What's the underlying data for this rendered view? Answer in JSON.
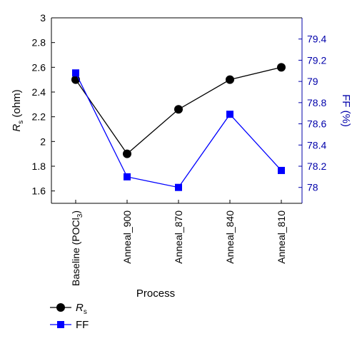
{
  "chart_data": {
    "type": "line",
    "categories": [
      "Baseline (POCl3)",
      "Anneal_900",
      "Anneal_870",
      "Anneal_840",
      "Anneal_810"
    ],
    "category_labels": [
      {
        "main": "Baseline (POCl",
        "sub": "3",
        "tail": ")"
      },
      {
        "main": "Anneal_900",
        "sub": "",
        "tail": ""
      },
      {
        "main": "Anneal_870",
        "sub": "",
        "tail": ""
      },
      {
        "main": "Anneal_840",
        "sub": "",
        "tail": ""
      },
      {
        "main": "Anneal_810",
        "sub": "",
        "tail": ""
      }
    ],
    "xlabel": "Process",
    "left_axis": {
      "label_main": "R",
      "label_sub": "s",
      "label_tail": " (ohm)",
      "ylim": [
        1.5,
        3.0
      ],
      "ticks": [
        1.6,
        1.8,
        2.0,
        2.2,
        2.4,
        2.6,
        2.8,
        3.0
      ],
      "tick_labels": [
        "1.6",
        "1.8",
        "2",
        "2.2",
        "2.4",
        "2.6",
        "2.8",
        "3"
      ],
      "color": "#000000"
    },
    "right_axis": {
      "label": "FF (%)",
      "ylim": [
        77.85,
        79.6
      ],
      "ticks": [
        78.0,
        78.2,
        78.4,
        78.6,
        78.8,
        79.0,
        79.2,
        79.4
      ],
      "tick_labels": [
        "78",
        "78.2",
        "78.4",
        "78.6",
        "78.8",
        "79",
        "79.2",
        "79.4"
      ],
      "color": "#0000aa"
    },
    "series": [
      {
        "name_main": "R",
        "name_sub": "s",
        "axis": "left",
        "values": [
          2.5,
          1.9,
          2.26,
          2.5,
          2.6
        ],
        "color": "#000000",
        "marker": "circle"
      },
      {
        "name_main": "FF",
        "name_sub": "",
        "axis": "right",
        "values": [
          79.08,
          78.1,
          78.0,
          78.69,
          78.16
        ],
        "color": "#0000ff",
        "marker": "square"
      }
    ],
    "legend_placement": "bottom-left",
    "grid": false
  }
}
